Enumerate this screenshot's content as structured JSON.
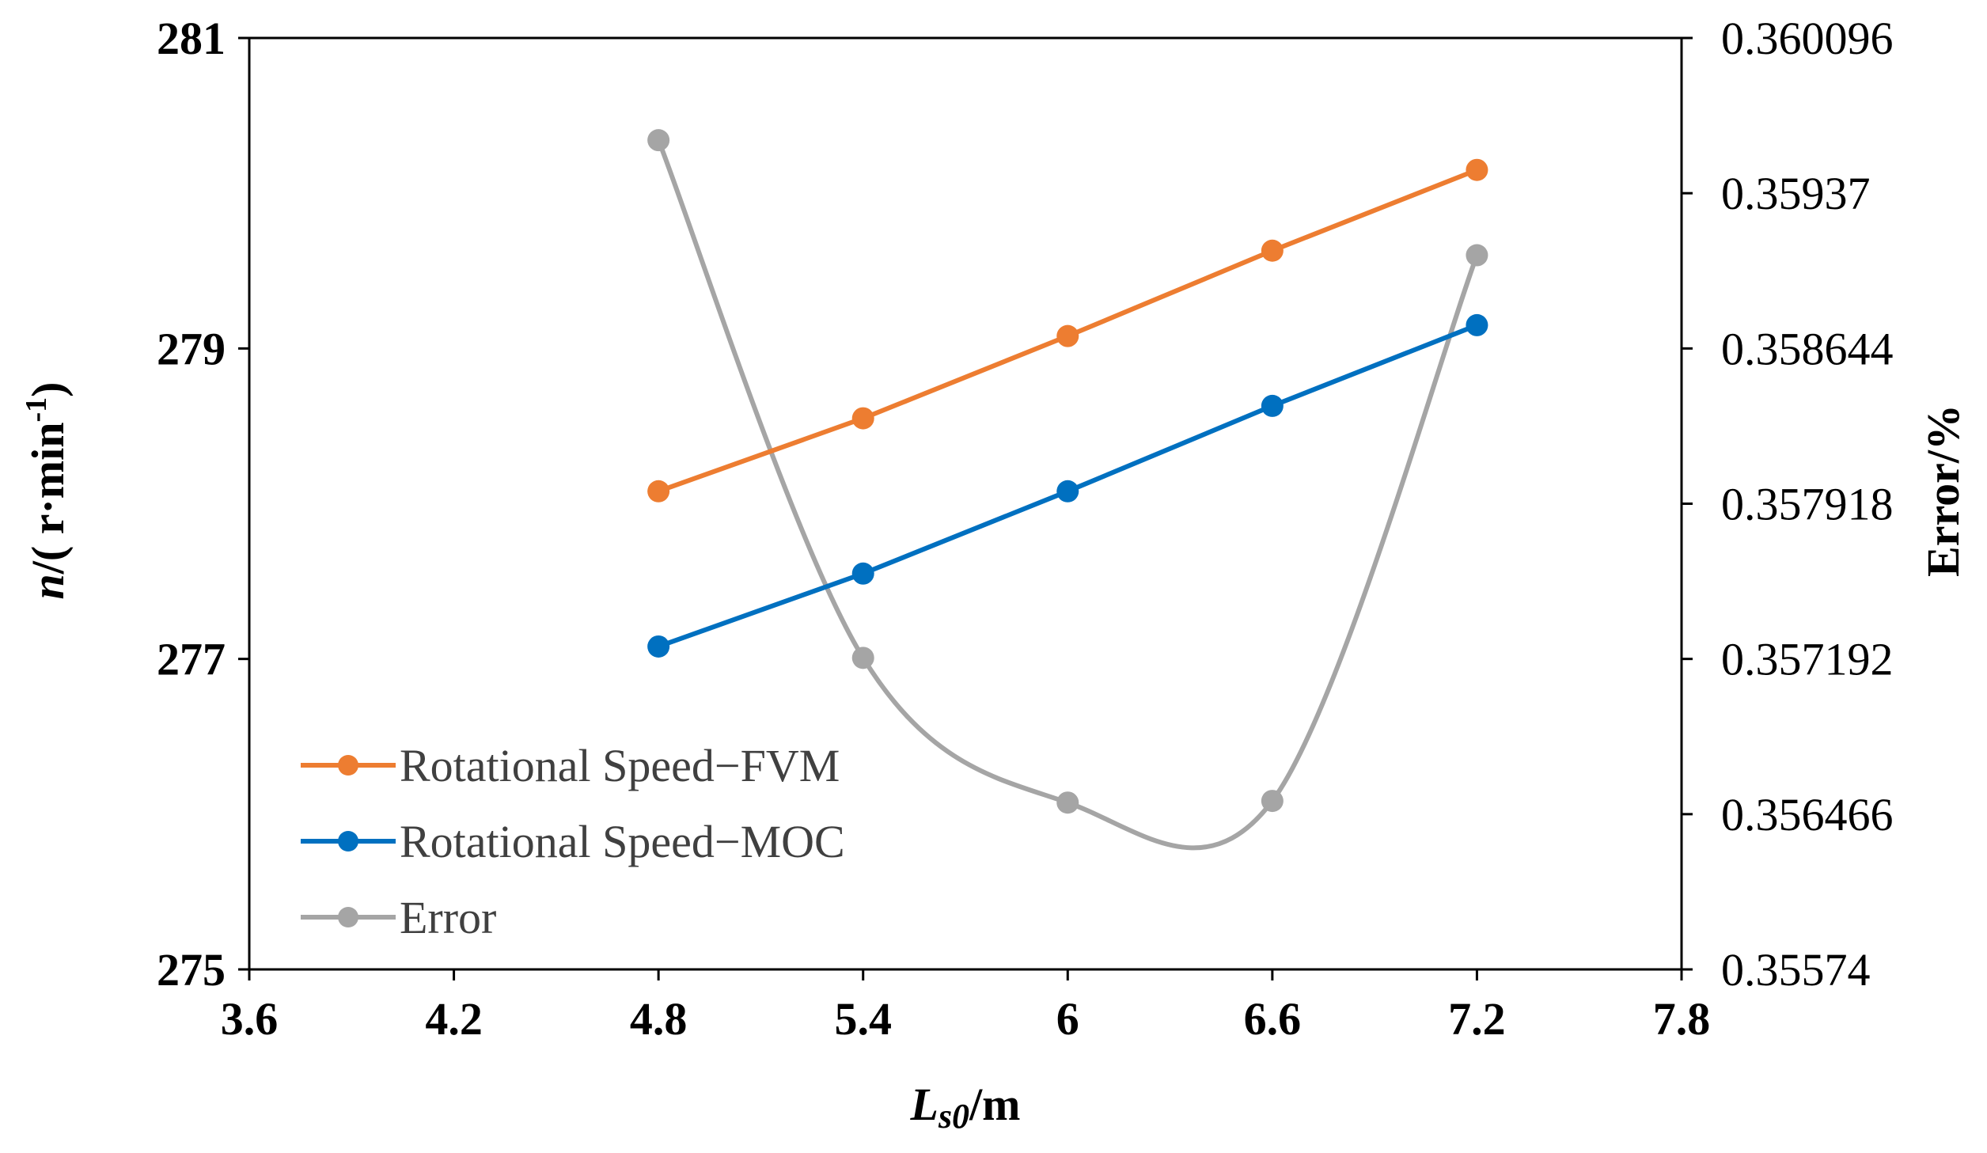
{
  "chart_data": {
    "type": "line",
    "title": "",
    "xlabel": {
      "main": "L",
      "sub": "s0",
      "unit": "/m"
    },
    "ylabel": {
      "main": "n",
      "unit": "/( r·min",
      "sup": "-1",
      "close": ")"
    },
    "y2label": "Error/%",
    "xlim": [
      3.6,
      7.8
    ],
    "ylim": [
      275,
      281
    ],
    "y2lim": [
      0.35574,
      0.360096
    ],
    "x_ticks": [
      "3.6",
      "4.2",
      "4.8",
      "5.4",
      "6",
      "6.6",
      "7.2",
      "7.8"
    ],
    "y_ticks": [
      "275",
      "277",
      "279",
      "281"
    ],
    "y2_ticks": [
      "0.35574",
      "0.356466",
      "0.357192",
      "0.357918",
      "0.358644",
      "0.35937",
      "0.360096"
    ],
    "grid": false,
    "legend_position": "bottom-left",
    "series": [
      {
        "name": "Rotational Speed−FVM",
        "axis": "left",
        "color": "#ED7D31",
        "smooth": false,
        "x": [
          4.8,
          5.4,
          6.0,
          6.6,
          7.2
        ],
        "y": [
          278.08,
          278.55,
          279.08,
          279.63,
          280.15
        ]
      },
      {
        "name": "Rotational Speed−MOC",
        "axis": "left",
        "color": "#0070C0",
        "smooth": false,
        "x": [
          4.8,
          5.4,
          6.0,
          6.6,
          7.2
        ],
        "y": [
          277.08,
          277.55,
          278.08,
          278.63,
          279.15
        ]
      },
      {
        "name": "Error",
        "axis": "right",
        "color": "#A5A5A5",
        "smooth": true,
        "x": [
          4.8,
          5.4,
          6.0,
          6.6,
          7.2
        ],
        "y": [
          0.359618,
          0.357197,
          0.35652,
          0.356528,
          0.35908
        ]
      }
    ]
  }
}
